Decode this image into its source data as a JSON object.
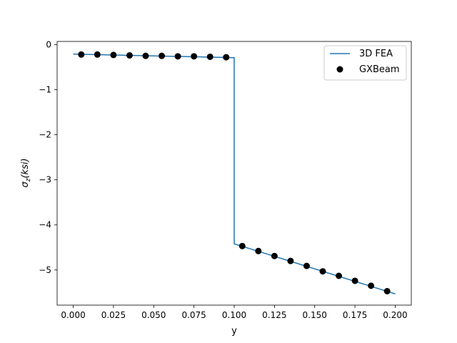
{
  "chart_data": {
    "type": "line",
    "title": "",
    "xlabel": "y",
    "ylabel_main": "σ",
    "ylabel_sub": "z",
    "ylabel_rest": "(ksi)",
    "xlim": [
      -0.01,
      0.21
    ],
    "ylim": [
      -5.78,
      0.07
    ],
    "xticks": [
      0.0,
      0.025,
      0.05,
      0.075,
      0.1,
      0.125,
      0.15,
      0.175,
      0.2
    ],
    "xtick_labels": [
      "0.000",
      "0.025",
      "0.050",
      "0.075",
      "0.100",
      "0.125",
      "0.150",
      "0.175",
      "0.200"
    ],
    "yticks": [
      0,
      -1,
      -2,
      -3,
      -4,
      -5
    ],
    "ytick_labels": [
      "0",
      "−1",
      "−2",
      "−3",
      "−4",
      "−5"
    ],
    "grid": false,
    "legend_position": "top-right",
    "series": [
      {
        "name": "3D FEA",
        "kind": "line",
        "color": "#1f77b4",
        "x": [
          0.0,
          0.1,
          0.1,
          0.2
        ],
        "y": [
          -0.21,
          -0.29,
          -4.42,
          -5.53
        ]
      },
      {
        "name": "GXBeam",
        "kind": "marker",
        "color": "#000000",
        "x": [
          0.005,
          0.015,
          0.025,
          0.035,
          0.045,
          0.055,
          0.065,
          0.075,
          0.085,
          0.095,
          0.105,
          0.115,
          0.125,
          0.135,
          0.145,
          0.155,
          0.165,
          0.175,
          0.185,
          0.195
        ],
        "y": [
          -0.22,
          -0.22,
          -0.23,
          -0.24,
          -0.25,
          -0.25,
          -0.26,
          -0.26,
          -0.27,
          -0.28,
          -4.47,
          -4.58,
          -4.69,
          -4.8,
          -4.91,
          -5.03,
          -5.13,
          -5.24,
          -5.35,
          -5.47
        ]
      }
    ]
  }
}
